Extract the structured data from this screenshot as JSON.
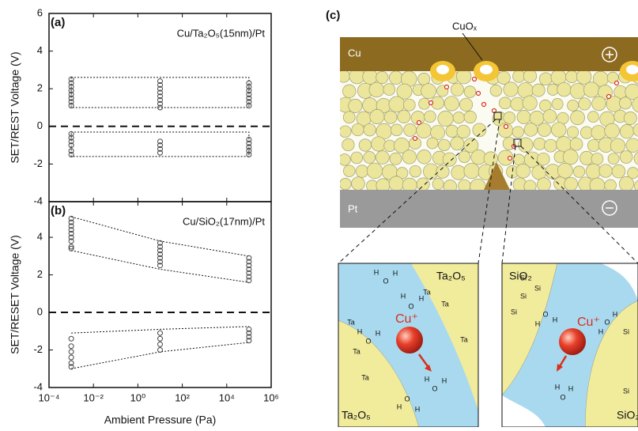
{
  "chart_data": [
    {
      "type": "scatter",
      "panel_label": "(a)",
      "annotation": "Cu/Ta₂O₅(15nm)/Pt",
      "ylabel": "SET/REST Voltage (V)",
      "xscale": "log",
      "xlim": [
        0.0001,
        1000000
      ],
      "xticks": [
        0.0001,
        0.01,
        1,
        100,
        10000,
        1000000
      ],
      "ylim": [
        -4,
        6
      ],
      "yticks": [
        -4,
        -2,
        0,
        2,
        4,
        6
      ],
      "hline": 0,
      "color": "#444444",
      "x": [
        0.001,
        0.001,
        0.001,
        0.001,
        0.001,
        0.001,
        0.001,
        0.001,
        0.001,
        0.001,
        0.001,
        0.001,
        0.001,
        0.001,
        10,
        10,
        10,
        10,
        10,
        10,
        10,
        10,
        10,
        10,
        10,
        10,
        100000,
        100000,
        100000,
        100000,
        100000,
        100000,
        100000,
        100000,
        100000,
        100000,
        100000,
        100000
      ],
      "y": [
        2.5,
        2.3,
        2.1,
        1.9,
        1.7,
        1.5,
        1.3,
        1.1,
        -0.4,
        -0.6,
        -0.8,
        -1.0,
        -1.3,
        -1.5,
        2.4,
        2.2,
        2.0,
        1.8,
        1.6,
        1.4,
        1.2,
        1.0,
        -0.8,
        -1.0,
        -1.2,
        -1.4,
        2.3,
        2.1,
        1.9,
        1.7,
        1.5,
        1.3,
        1.1,
        -0.7,
        -0.9,
        -1.1,
        -1.3,
        -1.5
      ],
      "guides": [
        {
          "x": [
            0.001,
            100000,
            100000,
            0.001,
            0.001
          ],
          "y": [
            2.6,
            2.6,
            1.0,
            1.0,
            2.6
          ]
        },
        {
          "x": [
            0.001,
            100000,
            100000,
            0.001,
            0.001
          ],
          "y": [
            -0.3,
            -0.3,
            -1.6,
            -1.6,
            -0.3
          ]
        }
      ]
    },
    {
      "type": "scatter",
      "panel_label": "(b)",
      "annotation": "Cu/SiO₂(17nm)/Pt",
      "ylabel": "SET/RESET Voltage (V)",
      "xlabel": "Ambient Pressure (Pa)",
      "xscale": "log",
      "xlim": [
        0.0001,
        1000000
      ],
      "xticks": [
        {
          "value": 0.0001,
          "label": "10⁻⁴"
        },
        {
          "value": 0.01,
          "label": "10⁻²"
        },
        {
          "value": 1,
          "label": "10⁰"
        },
        {
          "value": 100,
          "label": "10²"
        },
        {
          "value": 10000,
          "label": "10⁴"
        },
        {
          "value": 1000000,
          "label": "10⁶"
        }
      ],
      "ylim": [
        -4,
        5.9
      ],
      "yticks": [
        -4,
        -2,
        0,
        2,
        4
      ],
      "hline": 0,
      "color": "#444444",
      "x": [
        0.001,
        0.001,
        0.001,
        0.001,
        0.001,
        0.001,
        0.001,
        0.001,
        0.001,
        0.001,
        0.001,
        0.001,
        0.001,
        0.001,
        0.001,
        10,
        10,
        10,
        10,
        10,
        10,
        10,
        10,
        10,
        10,
        10,
        100000,
        100000,
        100000,
        100000,
        100000,
        100000,
        100000,
        100000,
        100000,
        100000,
        100000
      ],
      "y": [
        5.0,
        4.8,
        4.6,
        4.4,
        4.2,
        4.0,
        3.8,
        3.5,
        3.4,
        -1.4,
        -1.8,
        -2.1,
        -2.4,
        -2.7,
        -2.9,
        3.7,
        3.5,
        3.3,
        3.1,
        2.9,
        2.7,
        2.5,
        -1.1,
        -1.4,
        -1.7,
        -2.0,
        2.9,
        2.7,
        2.5,
        2.3,
        2.1,
        1.9,
        1.7,
        -0.9,
        -1.1,
        -1.3,
        -1.5
      ],
      "guides": [
        {
          "x": [
            0.001,
            10,
            100000
          ],
          "y": [
            5.1,
            3.8,
            3.0
          ]
        },
        {
          "x": [
            0.001,
            10,
            100000
          ],
          "y": [
            3.3,
            2.3,
            1.6
          ]
        },
        {
          "x": [
            0.001,
            10,
            100000
          ],
          "y": [
            -1.1,
            -0.9,
            -0.75
          ]
        },
        {
          "x": [
            0.001,
            10,
            100000
          ],
          "y": [
            -3.0,
            -2.1,
            -1.6
          ]
        }
      ]
    }
  ],
  "diagram": {
    "panel_label": "(c)",
    "cuox_label": "CuOₓ",
    "top_electrode": "Cu",
    "bottom_electrode": "Pt",
    "left_zoom": {
      "material": "Ta₂O₅",
      "material_bottom": "Ta₂O₅",
      "ion": "Cu⁺",
      "atoms": [
        "H",
        "O",
        "H",
        "H",
        "O",
        "H",
        "Ta",
        "Ta",
        "Ta",
        "Ta",
        "Ta",
        "Ta",
        "H",
        "O",
        "H",
        "H",
        "O",
        "H",
        "H",
        "O",
        "H"
      ]
    },
    "right_zoom": {
      "material": "SiO₂",
      "material_bottom": "SiO₂",
      "ion": "Cu⁺",
      "atoms": [
        "Si",
        "Si",
        "Si",
        "Si",
        "Si",
        "Si",
        "H",
        "O",
        "H",
        "H",
        "O",
        "H",
        "H",
        "O",
        "H"
      ]
    }
  }
}
